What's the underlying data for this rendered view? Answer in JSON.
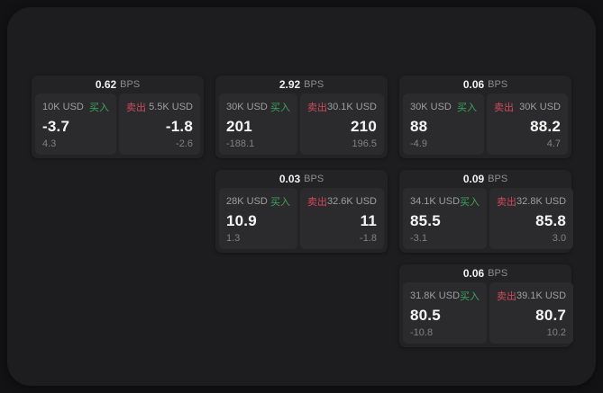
{
  "labels": {
    "buy": "买入",
    "sell": "卖出",
    "bps": "BPS"
  },
  "colors": {
    "buy_green": "#3aa55d",
    "sell_red": "#cf4a5c",
    "panel_bg": "#1d1d1f",
    "card_bg": "#232325",
    "pane_bg": "#2b2b2d"
  },
  "cards": [
    {
      "bps": "0.62",
      "buy": {
        "amount": "10K USD",
        "price": "-3.7",
        "delta": "4.3"
      },
      "sell": {
        "amount": "5.5K USD",
        "price": "-1.8",
        "delta": "-2.6"
      }
    },
    {
      "bps": "2.92",
      "buy": {
        "amount": "30K USD",
        "price": "201",
        "delta": "-188.1"
      },
      "sell": {
        "amount": "30.1K USD",
        "price": "210",
        "delta": "196.5"
      }
    },
    {
      "bps": "0.06",
      "buy": {
        "amount": "30K USD",
        "price": "88",
        "delta": "-4.9"
      },
      "sell": {
        "amount": "30K USD",
        "price": "88.2",
        "delta": "4.7"
      }
    },
    {
      "bps": "0.03",
      "buy": {
        "amount": "28K USD",
        "price": "10.9",
        "delta": "1.3"
      },
      "sell": {
        "amount": "32.6K USD",
        "price": "11",
        "delta": "-1.8"
      }
    },
    {
      "bps": "0.09",
      "buy": {
        "amount": "34.1K USD",
        "price": "85.5",
        "delta": "-3.1"
      },
      "sell": {
        "amount": "32.8K USD",
        "price": "85.8",
        "delta": "3.0"
      }
    },
    {
      "bps": "0.06",
      "buy": {
        "amount": "31.8K USD",
        "price": "80.5",
        "delta": "-10.8"
      },
      "sell": {
        "amount": "39.1K USD",
        "price": "80.7",
        "delta": "10.2"
      }
    }
  ]
}
